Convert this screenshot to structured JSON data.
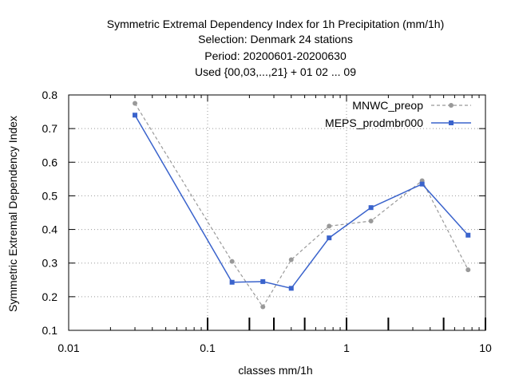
{
  "titles": {
    "line1": "Symmetric Extremal Dependency Index  for 1h Precipitation (mm/1h)",
    "line2": "Selection: Denmark     24 stations",
    "line3": "Period: 20200601-20200630",
    "line4": "Used {00,03,...,21} + 01 02 ... 09"
  },
  "chart_data": {
    "type": "line",
    "title": "Symmetric Extremal Dependency Index  for 1h Precipitation (mm/1h)",
    "xlabel": "classes mm/1h",
    "ylabel": "Symmetric Extremal Dependency Index",
    "x_scale": "log",
    "xlim": [
      0.01,
      10
    ],
    "ylim": [
      0.1,
      0.8
    ],
    "x_ticks": [
      "0.01",
      "0.1",
      "1",
      "10"
    ],
    "y_ticks": [
      "0.1",
      "0.2",
      "0.3",
      "0.4",
      "0.5",
      "0.6",
      "0.7",
      "0.8"
    ],
    "class_markers": [
      0.1,
      0.2,
      0.3,
      0.5,
      1,
      2,
      5,
      10
    ],
    "grid": true,
    "legend_position": "top-right",
    "series": [
      {
        "name": "MNWC_preop",
        "color": "#999999",
        "style": "dashed",
        "marker": "circle",
        "x": [
          0.03,
          0.15,
          0.25,
          0.4,
          0.75,
          1.5,
          3.5,
          7.5
        ],
        "values": [
          0.775,
          0.305,
          0.17,
          0.31,
          0.41,
          0.425,
          0.545,
          0.28
        ]
      },
      {
        "name": "MEPS_prodmbr000",
        "color": "#3a63cc",
        "style": "solid",
        "marker": "square",
        "x": [
          0.03,
          0.15,
          0.25,
          0.4,
          0.75,
          1.5,
          3.5,
          7.5
        ],
        "values": [
          0.74,
          0.243,
          0.245,
          0.225,
          0.375,
          0.465,
          0.535,
          0.383
        ]
      }
    ]
  }
}
